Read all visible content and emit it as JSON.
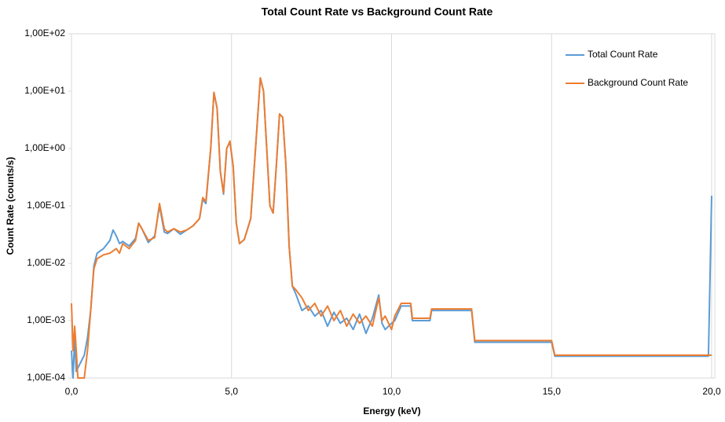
{
  "chart_data": {
    "type": "line",
    "title": "Total Count Rate vs Background Count Rate",
    "x_label": "Energy (keV)",
    "y_label": "Count Rate (counts/s)",
    "yscale": "log",
    "xgrid": true,
    "legend": "top-right",
    "xlim": [
      0,
      20.1
    ],
    "ylim": [
      0.0001,
      100
    ],
    "xticks": [
      {
        "value": 0,
        "label": "0,0"
      },
      {
        "value": 5,
        "label": "5,0"
      },
      {
        "value": 10,
        "label": "10,0"
      },
      {
        "value": 15,
        "label": "15,0"
      },
      {
        "value": 20,
        "label": "20,0"
      }
    ],
    "yticks": [
      {
        "value": 0.0001,
        "label": "1,00E-04"
      },
      {
        "value": 0.001,
        "label": "1,00E-03"
      },
      {
        "value": 0.01,
        "label": "1,00E-02"
      },
      {
        "value": 0.1,
        "label": "1,00E-01"
      },
      {
        "value": 1,
        "label": "1,00E+00"
      },
      {
        "value": 10,
        "label": "1,00E+01"
      },
      {
        "value": 100,
        "label": "1,00E+02"
      }
    ],
    "series": [
      {
        "name": "Total Count Rate",
        "color": "#5b9bd5",
        "x": [
          0.0,
          0.05,
          0.1,
          0.15,
          0.2,
          0.4,
          0.5,
          0.6,
          0.7,
          0.8,
          1.0,
          1.2,
          1.3,
          1.4,
          1.5,
          1.6,
          1.8,
          2.0,
          2.1,
          2.2,
          2.4,
          2.6,
          2.75,
          2.9,
          3.0,
          3.2,
          3.4,
          3.6,
          3.8,
          4.0,
          4.1,
          4.2,
          4.35,
          4.45,
          4.55,
          4.65,
          4.75,
          4.85,
          4.95,
          5.05,
          5.15,
          5.25,
          5.4,
          5.6,
          5.75,
          5.9,
          6.0,
          6.1,
          6.2,
          6.3,
          6.4,
          6.5,
          6.6,
          6.7,
          6.8,
          6.9,
          7.0,
          7.2,
          7.4,
          7.6,
          7.8,
          8.0,
          8.2,
          8.4,
          8.6,
          8.8,
          9.0,
          9.2,
          9.4,
          9.6,
          9.7,
          9.8,
          10.0,
          10.1,
          10.3,
          10.6,
          10.65,
          11.2,
          11.25,
          12.5,
          12.6,
          15.0,
          15.1,
          19.9,
          20.0
        ],
        "values": [
          0.0003,
          0.0001,
          0.0005,
          0.00013,
          0.00015,
          0.00025,
          0.0005,
          0.0015,
          0.009,
          0.015,
          0.018,
          0.025,
          0.038,
          0.03,
          0.022,
          0.024,
          0.02,
          0.027,
          0.05,
          0.04,
          0.023,
          0.03,
          0.1,
          0.035,
          0.033,
          0.04,
          0.032,
          0.038,
          0.045,
          0.06,
          0.13,
          0.11,
          1.0,
          9.5,
          5,
          0.4,
          0.16,
          1.0,
          1.3,
          0.5,
          0.05,
          0.022,
          0.026,
          0.06,
          1.0,
          17,
          10,
          1,
          0.1,
          0.075,
          0.5,
          4,
          3.5,
          0.5,
          0.02,
          0.004,
          0.003,
          0.0015,
          0.0018,
          0.0012,
          0.0015,
          0.0008,
          0.0014,
          0.0009,
          0.0011,
          0.0007,
          0.0013,
          0.0006,
          0.0011,
          0.0028,
          0.0009,
          0.0007,
          0.0009,
          0.001,
          0.0018,
          0.0018,
          0.001,
          0.001,
          0.0015,
          0.0015,
          0.00042,
          0.00042,
          0.00024,
          0.00024,
          0.15
        ]
      },
      {
        "name": "Background Count Rate",
        "color": "#ed7d31",
        "x": [
          0.0,
          0.05,
          0.1,
          0.15,
          0.2,
          0.4,
          0.5,
          0.6,
          0.7,
          0.8,
          1.0,
          1.2,
          1.4,
          1.5,
          1.6,
          1.8,
          2.0,
          2.1,
          2.2,
          2.4,
          2.6,
          2.75,
          2.9,
          3.0,
          3.2,
          3.4,
          3.6,
          3.8,
          4.0,
          4.1,
          4.2,
          4.35,
          4.45,
          4.55,
          4.65,
          4.75,
          4.85,
          4.95,
          5.05,
          5.15,
          5.25,
          5.4,
          5.6,
          5.75,
          5.9,
          6.0,
          6.1,
          6.2,
          6.3,
          6.4,
          6.5,
          6.6,
          6.7,
          6.8,
          6.9,
          7.0,
          7.2,
          7.4,
          7.6,
          7.8,
          8.0,
          8.2,
          8.4,
          8.6,
          8.8,
          9.0,
          9.2,
          9.4,
          9.6,
          9.7,
          9.8,
          10.0,
          10.1,
          10.3,
          10.6,
          10.65,
          11.2,
          11.25,
          12.5,
          12.6,
          15.0,
          15.1,
          20.0
        ],
        "values": [
          0.002,
          0.0003,
          0.0008,
          0.0003,
          0.0001,
          0.0001,
          0.0003,
          0.0015,
          0.008,
          0.012,
          0.014,
          0.015,
          0.018,
          0.015,
          0.022,
          0.018,
          0.025,
          0.05,
          0.04,
          0.025,
          0.028,
          0.11,
          0.04,
          0.035,
          0.04,
          0.035,
          0.038,
          0.045,
          0.06,
          0.14,
          0.12,
          1.0,
          9.5,
          5,
          0.4,
          0.17,
          1.0,
          1.35,
          0.5,
          0.05,
          0.022,
          0.026,
          0.06,
          1.0,
          17,
          10,
          1,
          0.1,
          0.075,
          0.5,
          4,
          3.5,
          0.5,
          0.02,
          0.004,
          0.0035,
          0.0025,
          0.0015,
          0.002,
          0.0012,
          0.0018,
          0.001,
          0.0015,
          0.0008,
          0.0013,
          0.0009,
          0.0012,
          0.0008,
          0.0025,
          0.001,
          0.0012,
          0.0007,
          0.0012,
          0.002,
          0.002,
          0.0011,
          0.0011,
          0.0016,
          0.0016,
          0.00045,
          0.00045,
          0.00025,
          0.00025
        ]
      }
    ]
  }
}
